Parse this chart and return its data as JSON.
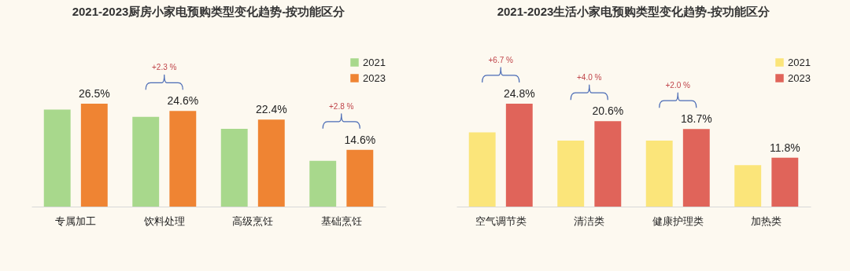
{
  "chart_data": [
    {
      "type": "bar",
      "title": "2021-2023厨房小家电预购类型变化趋势-按功能区分",
      "categories": [
        "专属加工",
        "饮料处理",
        "高级烹饪",
        "基础烹饪"
      ],
      "series": [
        {
          "name": "2021",
          "color": "#a8d88c",
          "values": [
            25.0,
            23.1,
            20.0,
            11.8
          ]
        },
        {
          "name": "2023",
          "color": "#ef8433",
          "values": [
            26.5,
            24.6,
            22.4,
            14.6
          ],
          "value_labels": [
            "26.5%",
            "24.6%",
            "22.4%",
            "14.6%"
          ]
        }
      ],
      "legend": "top right",
      "annotations": [
        "+2.3 %",
        "+2.8 %"
      ]
    },
    {
      "type": "bar",
      "title": "2021-2023生活小家电预购类型变化趋势-按功能区分",
      "categories": [
        "空气调节类",
        "清洁类",
        "健康护理类",
        "加热类"
      ],
      "series": [
        {
          "name": "2021",
          "color": "#fbe57a",
          "values": [
            17.9,
            15.9,
            15.9,
            10.0
          ]
        },
        {
          "name": "2023",
          "color": "#e0645a",
          "values": [
            24.8,
            20.6,
            18.7,
            11.8
          ],
          "value_labels": [
            "24.8%",
            "20.6%",
            "18.7%",
            "11.8%"
          ]
        }
      ],
      "legend": "top right",
      "annotations": [
        "+6.7 %",
        "+4.0 %",
        "+2.0 %"
      ]
    }
  ]
}
